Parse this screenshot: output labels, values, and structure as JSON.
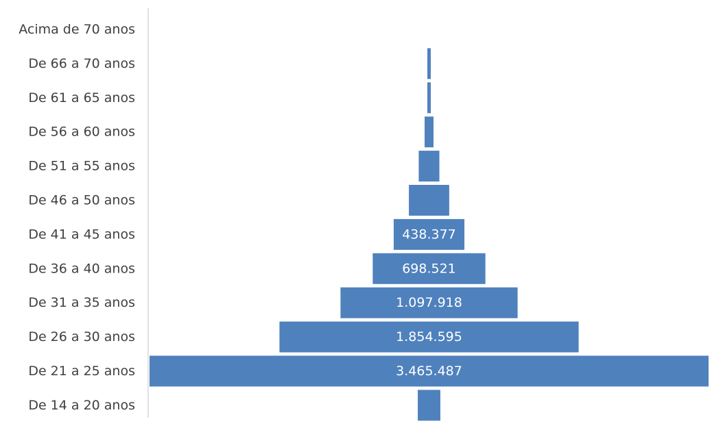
{
  "chart_data": {
    "type": "bar",
    "orientation": "horizontal-centered",
    "title": "",
    "xlabel": "",
    "ylabel": "",
    "grid": false,
    "legend": "none",
    "categories": [
      "Acima de 70 anos",
      "De 66 a 70 anos",
      "De 61 a 65 anos",
      "De 56 a 60 anos",
      "De 51 a 55 anos",
      "De 46 a 50 anos",
      "De 41 a 45 anos",
      "De 36 a 40 anos",
      "De 31 a 35 anos",
      "De 26 a 30 anos",
      "De 21 a 25 anos",
      "De 14 a 20 anos"
    ],
    "values": [
      0,
      17000,
      17000,
      55000,
      128000,
      250000,
      438377,
      698521,
      1097918,
      1854595,
      3465487,
      140000
    ],
    "data_labels": [
      "",
      "",
      "",
      "",
      "",
      "",
      "438.377",
      "698.521",
      "1.097.918",
      "1.854.595",
      "3.465.487",
      ""
    ],
    "colors": {
      "bar": "#4F81BD",
      "axis": "#D9D9D9",
      "label_text": "#FFFFFF",
      "category_text": "#404040"
    }
  }
}
